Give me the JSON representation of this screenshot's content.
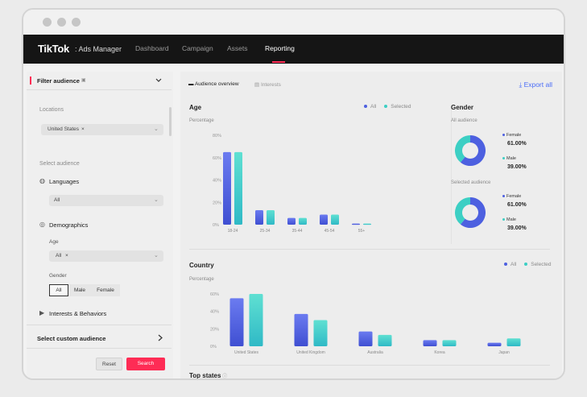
{
  "nav": {
    "logo": "TikTok",
    "logo_sub": ": Ads Manager",
    "items": [
      "Dashboard",
      "Campaign",
      "Assets",
      "Reporting"
    ],
    "active": "Reporting"
  },
  "filter": {
    "title": "Filter audience",
    "locations_label": "Locations",
    "location_chip": "United States",
    "select_audience": "Select audience",
    "languages_label": "Languages",
    "languages_value": "All",
    "demographics_label": "Demographics",
    "age_label": "Age",
    "age_chip": "All",
    "gender_label": "Gender",
    "gender_options": [
      "All",
      "Male",
      "Female"
    ],
    "interests_label": "Interests & Behaviors",
    "custom_audience": "Select custom audience",
    "reset": "Reset",
    "search": "Search"
  },
  "tabs": {
    "overview": "Audience overview",
    "interests": "Interests",
    "export": "Export all"
  },
  "age": {
    "title": "Age",
    "ylabel": "Percentage",
    "legend": [
      "All",
      "Selected"
    ]
  },
  "gender": {
    "title": "Gender",
    "all_label": "All audience",
    "selected_label": "Selected audience",
    "female": "Female",
    "male": "Male",
    "all_female": "61.00%",
    "all_male": "39.00%",
    "sel_female": "61.00%",
    "sel_male": "39.00%"
  },
  "country": {
    "title": "Country",
    "ylabel": "Percentage",
    "legend": [
      "All",
      "Selected"
    ]
  },
  "top_states": {
    "title": "Top states"
  },
  "colors": {
    "accent": "#fe2c55",
    "all": "#4d60e0",
    "selected": "#3ccfc4",
    "link": "#4a6cf7"
  },
  "chart_data": [
    {
      "type": "bar",
      "title": "Age",
      "ylabel": "Percentage",
      "categories": [
        "18-24",
        "25-34",
        "35-44",
        "45-54",
        "55+"
      ],
      "yticks": [
        "0%",
        "20%",
        "40%",
        "60%",
        "80%"
      ],
      "ylim": [
        0,
        80
      ],
      "series": [
        {
          "name": "All",
          "values": [
            65,
            13,
            6,
            9,
            1
          ]
        },
        {
          "name": "Selected",
          "values": [
            65,
            13,
            6,
            9,
            1
          ]
        }
      ]
    },
    {
      "type": "bar",
      "title": "Country",
      "ylabel": "Percentage",
      "categories": [
        "United States",
        "United Kingdom",
        "Australia",
        "Korea",
        "Japan"
      ],
      "yticks": [
        "0%",
        "20%",
        "40%",
        "60%"
      ],
      "ylim": [
        0,
        60
      ],
      "series": [
        {
          "name": "All",
          "values": [
            55,
            37,
            17,
            7,
            4
          ]
        },
        {
          "name": "Selected",
          "values": [
            60,
            30,
            13,
            7,
            9
          ]
        }
      ]
    },
    {
      "type": "pie",
      "title": "All audience",
      "categories": [
        "Female",
        "Male"
      ],
      "values": [
        61,
        39
      ]
    },
    {
      "type": "pie",
      "title": "Selected audience",
      "categories": [
        "Female",
        "Male"
      ],
      "values": [
        61,
        39
      ]
    }
  ]
}
